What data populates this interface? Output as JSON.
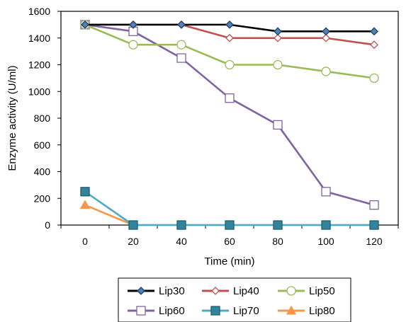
{
  "chart_data": {
    "type": "line",
    "title": "",
    "xlabel": "Time (min)",
    "ylabel": "Enzyme activity (U/ml)",
    "x": [
      0,
      20,
      40,
      60,
      80,
      100,
      120
    ],
    "x_ticks": [
      "0",
      "20",
      "40",
      "60",
      "80",
      "100",
      "120"
    ],
    "y_ticks": [
      "0",
      "200",
      "400",
      "600",
      "800",
      "1000",
      "1200",
      "1400",
      "1600"
    ],
    "xlim": [
      -10,
      130
    ],
    "ylim": [
      0,
      1600
    ],
    "grid": false,
    "legend_position": "bottom",
    "series": [
      {
        "name": "Lip30",
        "color": "#000000",
        "marker": "diamond-filled",
        "marker_fill": "#4f81bd",
        "values": [
          1500,
          1500,
          1500,
          1500,
          1450,
          1450,
          1450
        ]
      },
      {
        "name": "Lip40",
        "color": "#c0504d",
        "marker": "diamond-open",
        "marker_fill": "#ffffff",
        "values": [
          1500,
          1500,
          1500,
          1400,
          1400,
          1400,
          1350
        ]
      },
      {
        "name": "Lip50",
        "color": "#9bbb59",
        "marker": "circle-open",
        "marker_fill": "#ffffff",
        "values": [
          1500,
          1350,
          1350,
          1200,
          1200,
          1150,
          1100
        ]
      },
      {
        "name": "Lip60",
        "color": "#8064a2",
        "marker": "square-open",
        "marker_fill": "#ffffff",
        "values": [
          1500,
          1450,
          1250,
          950,
          750,
          250,
          150
        ]
      },
      {
        "name": "Lip70",
        "color": "#4bacc6",
        "marker": "square-filled",
        "marker_fill": "#31849b",
        "values": [
          250,
          0,
          0,
          0,
          0,
          0,
          0
        ]
      },
      {
        "name": "Lip80",
        "color": "#f79646",
        "marker": "triangle-filled",
        "marker_fill": "#f79646",
        "values": [
          150,
          0,
          0,
          0,
          0,
          0,
          0
        ]
      }
    ]
  }
}
